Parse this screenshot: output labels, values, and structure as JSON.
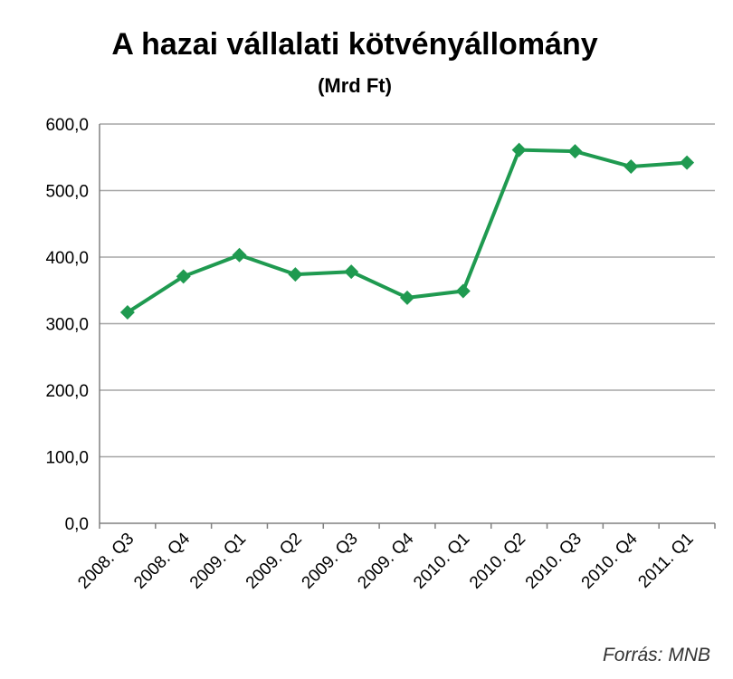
{
  "chart_data": {
    "type": "line",
    "title": "A hazai vállalati kötvényállomány",
    "subtitle": "(Mrd Ft)",
    "source": "Forrás: MNB",
    "categories": [
      "2008. Q3",
      "2008. Q4",
      "2009. Q1",
      "2009. Q2",
      "2009. Q3",
      "2009. Q4",
      "2010. Q1",
      "2010. Q2",
      "2010. Q3",
      "2010. Q4",
      "2011. Q1"
    ],
    "series": [
      {
        "values": [
          317,
          371,
          403,
          374,
          378,
          339,
          349,
          561,
          559,
          536,
          542
        ]
      }
    ],
    "y_ticks": [
      "0,0",
      "100,0",
      "200,0",
      "300,0",
      "400,0",
      "500,0",
      "600,0"
    ],
    "ylim": [
      0,
      600
    ],
    "grid": true,
    "legend": "none",
    "colors": {
      "series": "#1f9a50",
      "grid": "#a6a6a6",
      "axis": "#808080"
    }
  }
}
